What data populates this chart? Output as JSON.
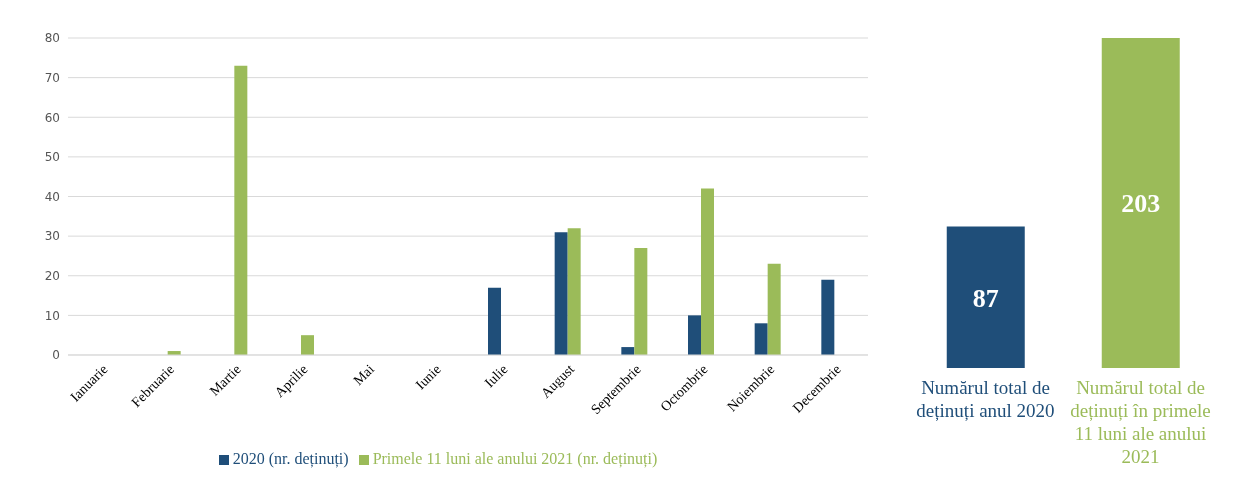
{
  "chart_data": [
    {
      "type": "bar",
      "categories": [
        "Ianuarie",
        "Februarie",
        "Martie",
        "Aprilie",
        "Mai",
        "Iunie",
        "Iulie",
        "August",
        "Septembrie",
        "Octombrie",
        "Noiembrie",
        "Decembrie"
      ],
      "series": [
        {
          "name": "2020 (nr. deținuți)",
          "color": "#1f4e79",
          "values": [
            0,
            0,
            0,
            0,
            0,
            0,
            17,
            31,
            2,
            10,
            8,
            19
          ]
        },
        {
          "name": "Primele 11 luni ale anului 2021 (nr. deținuți)",
          "color": "#9bbb59",
          "values": [
            0,
            1,
            73,
            5,
            0,
            0,
            0,
            32,
            27,
            42,
            23,
            0
          ]
        }
      ],
      "ylim": [
        0,
        80
      ],
      "yticks": [
        0,
        10,
        20,
        30,
        40,
        50,
        60,
        70,
        80
      ],
      "grid": "y",
      "legend": "bottom"
    },
    {
      "type": "bar",
      "categories": [
        "Numărul total de deținuți anul 2020",
        "Numărul total de deținuți în primele 11 luni ale anului 2021"
      ],
      "values": [
        87,
        203
      ],
      "colors": [
        "#1f4e79",
        "#9bbb59"
      ],
      "data_labels": true
    }
  ]
}
